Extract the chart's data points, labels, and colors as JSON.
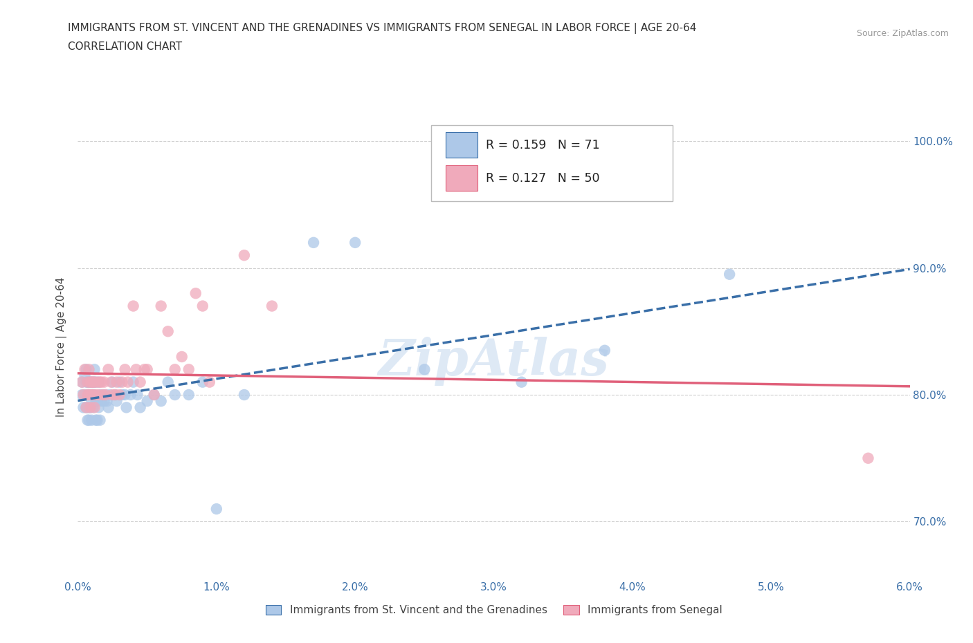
{
  "title_line1": "IMMIGRANTS FROM ST. VINCENT AND THE GRENADINES VS IMMIGRANTS FROM SENEGAL IN LABOR FORCE | AGE 20-64",
  "title_line2": "CORRELATION CHART",
  "source_text": "Source: ZipAtlas.com",
  "ylabel": "In Labor Force | Age 20-64",
  "xlim": [
    0.0,
    0.06
  ],
  "ylim": [
    0.655,
    1.02
  ],
  "xtick_labels": [
    "0.0%",
    "1.0%",
    "2.0%",
    "3.0%",
    "4.0%",
    "5.0%",
    "6.0%"
  ],
  "xtick_vals": [
    0.0,
    0.01,
    0.02,
    0.03,
    0.04,
    0.05,
    0.06
  ],
  "ytick_labels": [
    "70.0%",
    "80.0%",
    "90.0%",
    "100.0%"
  ],
  "ytick_vals": [
    0.7,
    0.8,
    0.9,
    1.0
  ],
  "blue_fill": "#adc8e8",
  "pink_fill": "#f0aabb",
  "blue_line_color": "#3a6fa8",
  "pink_line_color": "#e0607a",
  "blue_R": 0.159,
  "blue_N": 71,
  "pink_R": 0.127,
  "pink_N": 50,
  "legend_label_blue": "Immigrants from St. Vincent and the Grenadines",
  "legend_label_pink": "Immigrants from Senegal",
  "watermark": "ZipAtlas",
  "blue_scatter_x": [
    0.0003,
    0.0003,
    0.0004,
    0.0005,
    0.0005,
    0.0006,
    0.0006,
    0.0006,
    0.0007,
    0.0007,
    0.0007,
    0.0007,
    0.0008,
    0.0008,
    0.0008,
    0.0008,
    0.0009,
    0.0009,
    0.0009,
    0.001,
    0.001,
    0.001,
    0.001,
    0.0011,
    0.0011,
    0.0011,
    0.0012,
    0.0012,
    0.0012,
    0.0013,
    0.0013,
    0.0013,
    0.0014,
    0.0014,
    0.0015,
    0.0015,
    0.0016,
    0.0016,
    0.0017,
    0.0018,
    0.0019,
    0.002,
    0.0021,
    0.0022,
    0.0023,
    0.0025,
    0.0027,
    0.0028,
    0.003,
    0.0032,
    0.0034,
    0.0035,
    0.0038,
    0.004,
    0.0043,
    0.0045,
    0.005,
    0.0055,
    0.006,
    0.0065,
    0.007,
    0.008,
    0.009,
    0.01,
    0.012,
    0.017,
    0.02,
    0.025,
    0.032,
    0.038,
    0.047
  ],
  "blue_scatter_y": [
    0.8,
    0.81,
    0.79,
    0.815,
    0.8,
    0.82,
    0.79,
    0.81,
    0.8,
    0.79,
    0.81,
    0.78,
    0.8,
    0.81,
    0.78,
    0.79,
    0.8,
    0.79,
    0.81,
    0.8,
    0.81,
    0.795,
    0.78,
    0.8,
    0.81,
    0.79,
    0.8,
    0.81,
    0.82,
    0.78,
    0.795,
    0.81,
    0.795,
    0.78,
    0.79,
    0.81,
    0.8,
    0.78,
    0.795,
    0.8,
    0.795,
    0.8,
    0.795,
    0.79,
    0.8,
    0.81,
    0.8,
    0.795,
    0.81,
    0.8,
    0.8,
    0.79,
    0.8,
    0.81,
    0.8,
    0.79,
    0.795,
    0.8,
    0.795,
    0.81,
    0.8,
    0.8,
    0.81,
    0.71,
    0.8,
    0.92,
    0.92,
    0.82,
    0.81,
    0.835,
    0.895
  ],
  "pink_scatter_x": [
    0.0003,
    0.0004,
    0.0005,
    0.0006,
    0.0007,
    0.0007,
    0.0008,
    0.0008,
    0.0009,
    0.0009,
    0.001,
    0.001,
    0.0011,
    0.0011,
    0.0012,
    0.0012,
    0.0013,
    0.0014,
    0.0015,
    0.0016,
    0.0017,
    0.0018,
    0.0019,
    0.002,
    0.0022,
    0.0024,
    0.0025,
    0.0027,
    0.0028,
    0.003,
    0.0032,
    0.0034,
    0.0036,
    0.004,
    0.0042,
    0.0045,
    0.0048,
    0.005,
    0.0055,
    0.006,
    0.0065,
    0.007,
    0.0075,
    0.008,
    0.0085,
    0.009,
    0.0095,
    0.012,
    0.014,
    0.057
  ],
  "pink_scatter_y": [
    0.81,
    0.8,
    0.82,
    0.79,
    0.81,
    0.8,
    0.8,
    0.82,
    0.81,
    0.79,
    0.8,
    0.81,
    0.81,
    0.8,
    0.81,
    0.79,
    0.8,
    0.81,
    0.8,
    0.81,
    0.81,
    0.8,
    0.81,
    0.8,
    0.82,
    0.81,
    0.8,
    0.8,
    0.81,
    0.8,
    0.81,
    0.82,
    0.81,
    0.87,
    0.82,
    0.81,
    0.82,
    0.82,
    0.8,
    0.87,
    0.85,
    0.82,
    0.83,
    0.82,
    0.88,
    0.87,
    0.81,
    0.91,
    0.87,
    0.75
  ],
  "background_color": "#ffffff",
  "grid_color": "#d0d0d0"
}
